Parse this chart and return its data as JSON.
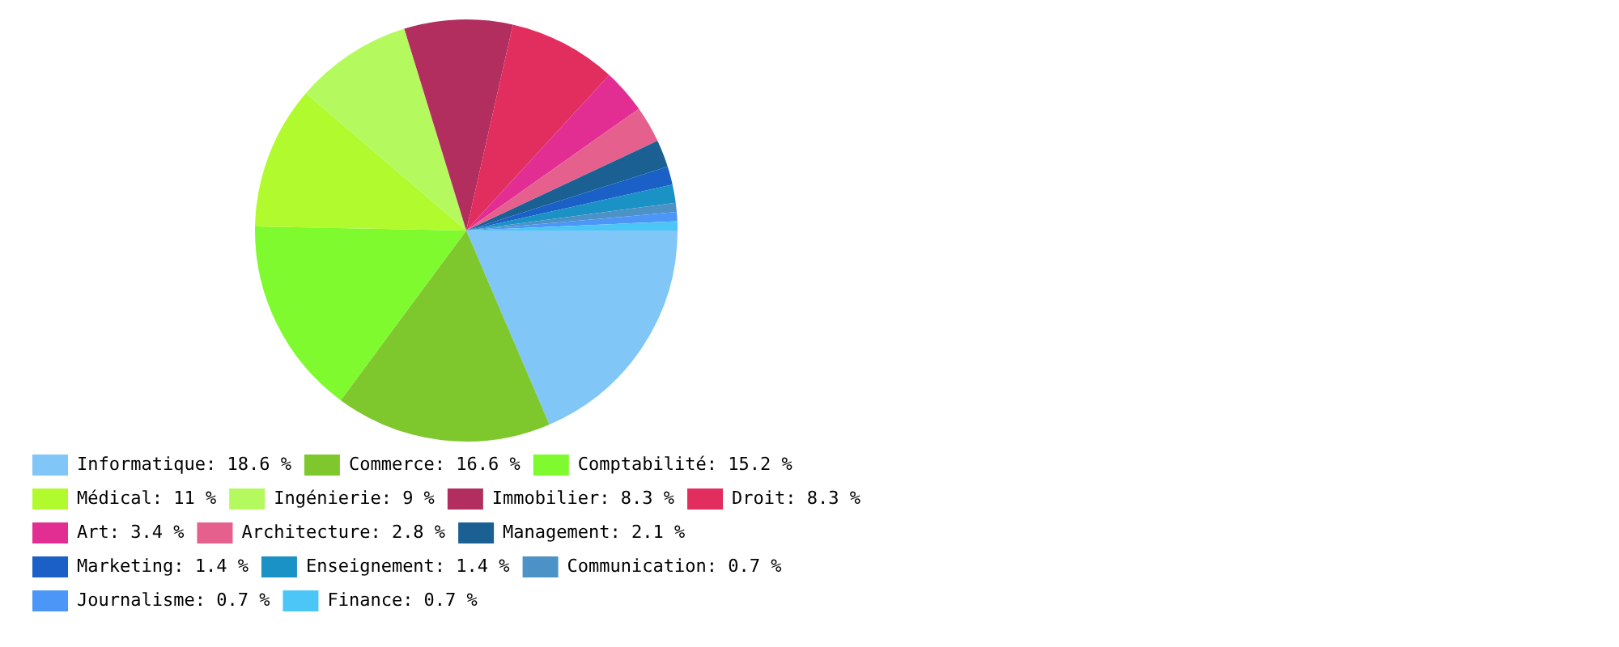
{
  "chart_data": {
    "type": "pie",
    "categories": [
      "Informatique",
      "Commerce",
      "Comptabilité",
      "Médical",
      "Ingénierie",
      "Immobilier",
      "Droit",
      "Art",
      "Architecture",
      "Management",
      "Marketing",
      "Enseignement",
      "Communication",
      "Journalisme",
      "Finance"
    ],
    "values": [
      18.6,
      16.6,
      15.2,
      11,
      9,
      8.3,
      8.3,
      3.4,
      2.8,
      2.1,
      1.4,
      1.4,
      0.7,
      0.7,
      0.7
    ],
    "value_labels": [
      "18.6 %",
      "16.6 %",
      "15.2 %",
      "11 %",
      "9 %",
      "8.3 %",
      "8.3 %",
      "3.4 %",
      "2.8 %",
      "2.1 %",
      "1.4 %",
      "1.4 %",
      "0.7 %",
      "0.7 %",
      "0.7 %"
    ],
    "colors": [
      "#80c6f7",
      "#7ec82e",
      "#7efa2e",
      "#b0fa2e",
      "#b4fa5e",
      "#b22e5e",
      "#e22e5e",
      "#e22e92",
      "#e6608e",
      "#1a6092",
      "#1a60c6",
      "#1a92c6",
      "#4c92c6",
      "#4c96f7",
      "#4cc6f7"
    ],
    "legend": "bottom left"
  }
}
